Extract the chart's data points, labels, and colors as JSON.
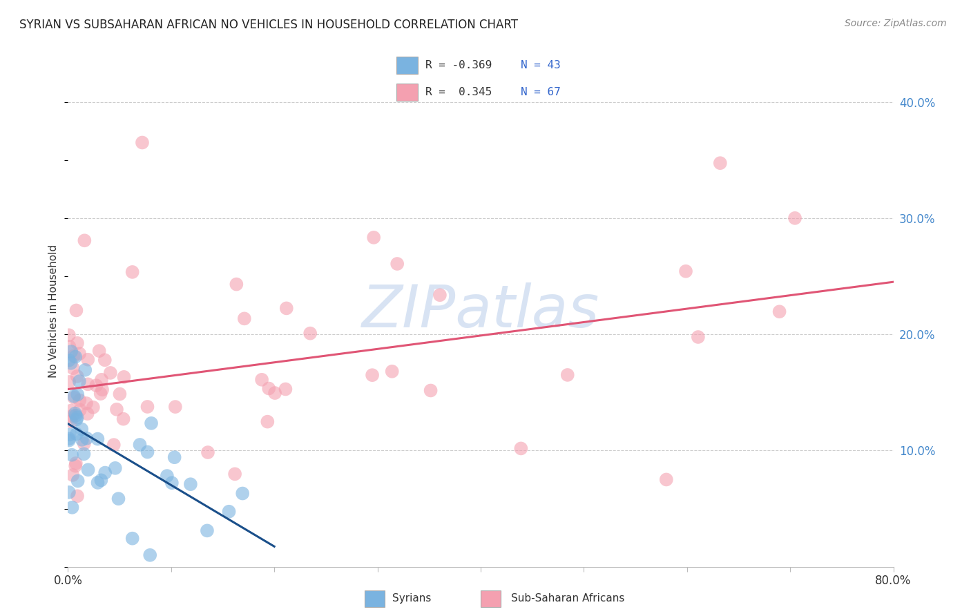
{
  "title": "SYRIAN VS SUBSAHARAN AFRICAN NO VEHICLES IN HOUSEHOLD CORRELATION CHART",
  "source": "Source: ZipAtlas.com",
  "ylabel": "No Vehicles in Household",
  "ytick_labels": [
    "10.0%",
    "20.0%",
    "30.0%",
    "40.0%"
  ],
  "ytick_values": [
    0.1,
    0.2,
    0.3,
    0.4
  ],
  "xlim": [
    0.0,
    0.8
  ],
  "ylim": [
    0.0,
    0.44
  ],
  "blue_color": "#7ab3e0",
  "pink_color": "#f4a0b0",
  "blue_line_color": "#1a4f8a",
  "pink_line_color": "#e05575",
  "background_color": "#ffffff",
  "grid_color": "#cccccc",
  "watermark_color": "#c8d8ef",
  "legend_text_color": "#333333",
  "legend_val_color": "#3366cc",
  "right_tick_color": "#4488cc",
  "title_color": "#222222",
  "source_color": "#888888"
}
